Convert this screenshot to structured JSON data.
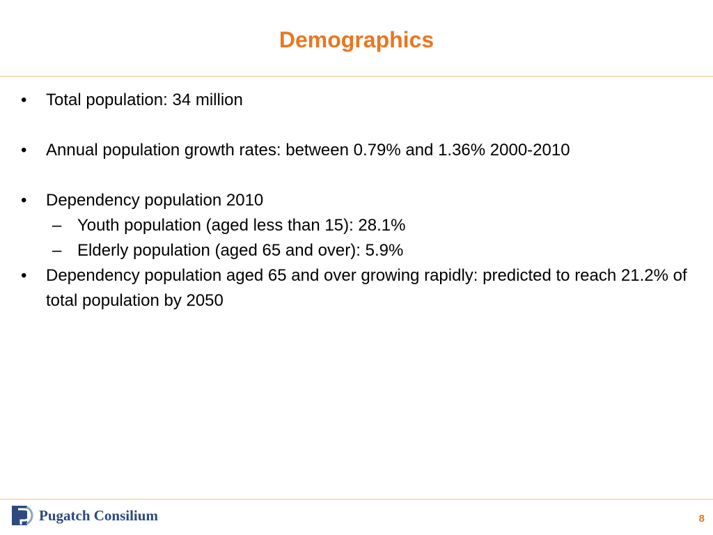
{
  "slide": {
    "title": "Demographics",
    "page_number": "8"
  },
  "bullets": [
    {
      "marker": "•",
      "text": "Total population: 34 million"
    },
    {
      "marker": "•",
      "text": "Annual population growth rates: between 0.79% and 1.36% 2000-2010"
    },
    {
      "marker": "•",
      "text": "Dependency population 2010",
      "sub": [
        {
          "marker": "–",
          "text": "Youth population (aged less than 15): 28.1%"
        },
        {
          "marker": "–",
          "text": "Elderly population (aged 65 and over): 5.9%"
        }
      ]
    },
    {
      "marker": "•",
      "text": "Dependency population aged 65 and over growing rapidly: predicted to reach 21.2% of total population by 2050"
    }
  ],
  "footer": {
    "logo_text": "Pugatch Consilium",
    "logo_icon": "pugatch-consilium-logo-icon"
  },
  "colors": {
    "accent": "#e87722",
    "rule": "#f0c287",
    "logo_blue": "#2c4a7c"
  }
}
